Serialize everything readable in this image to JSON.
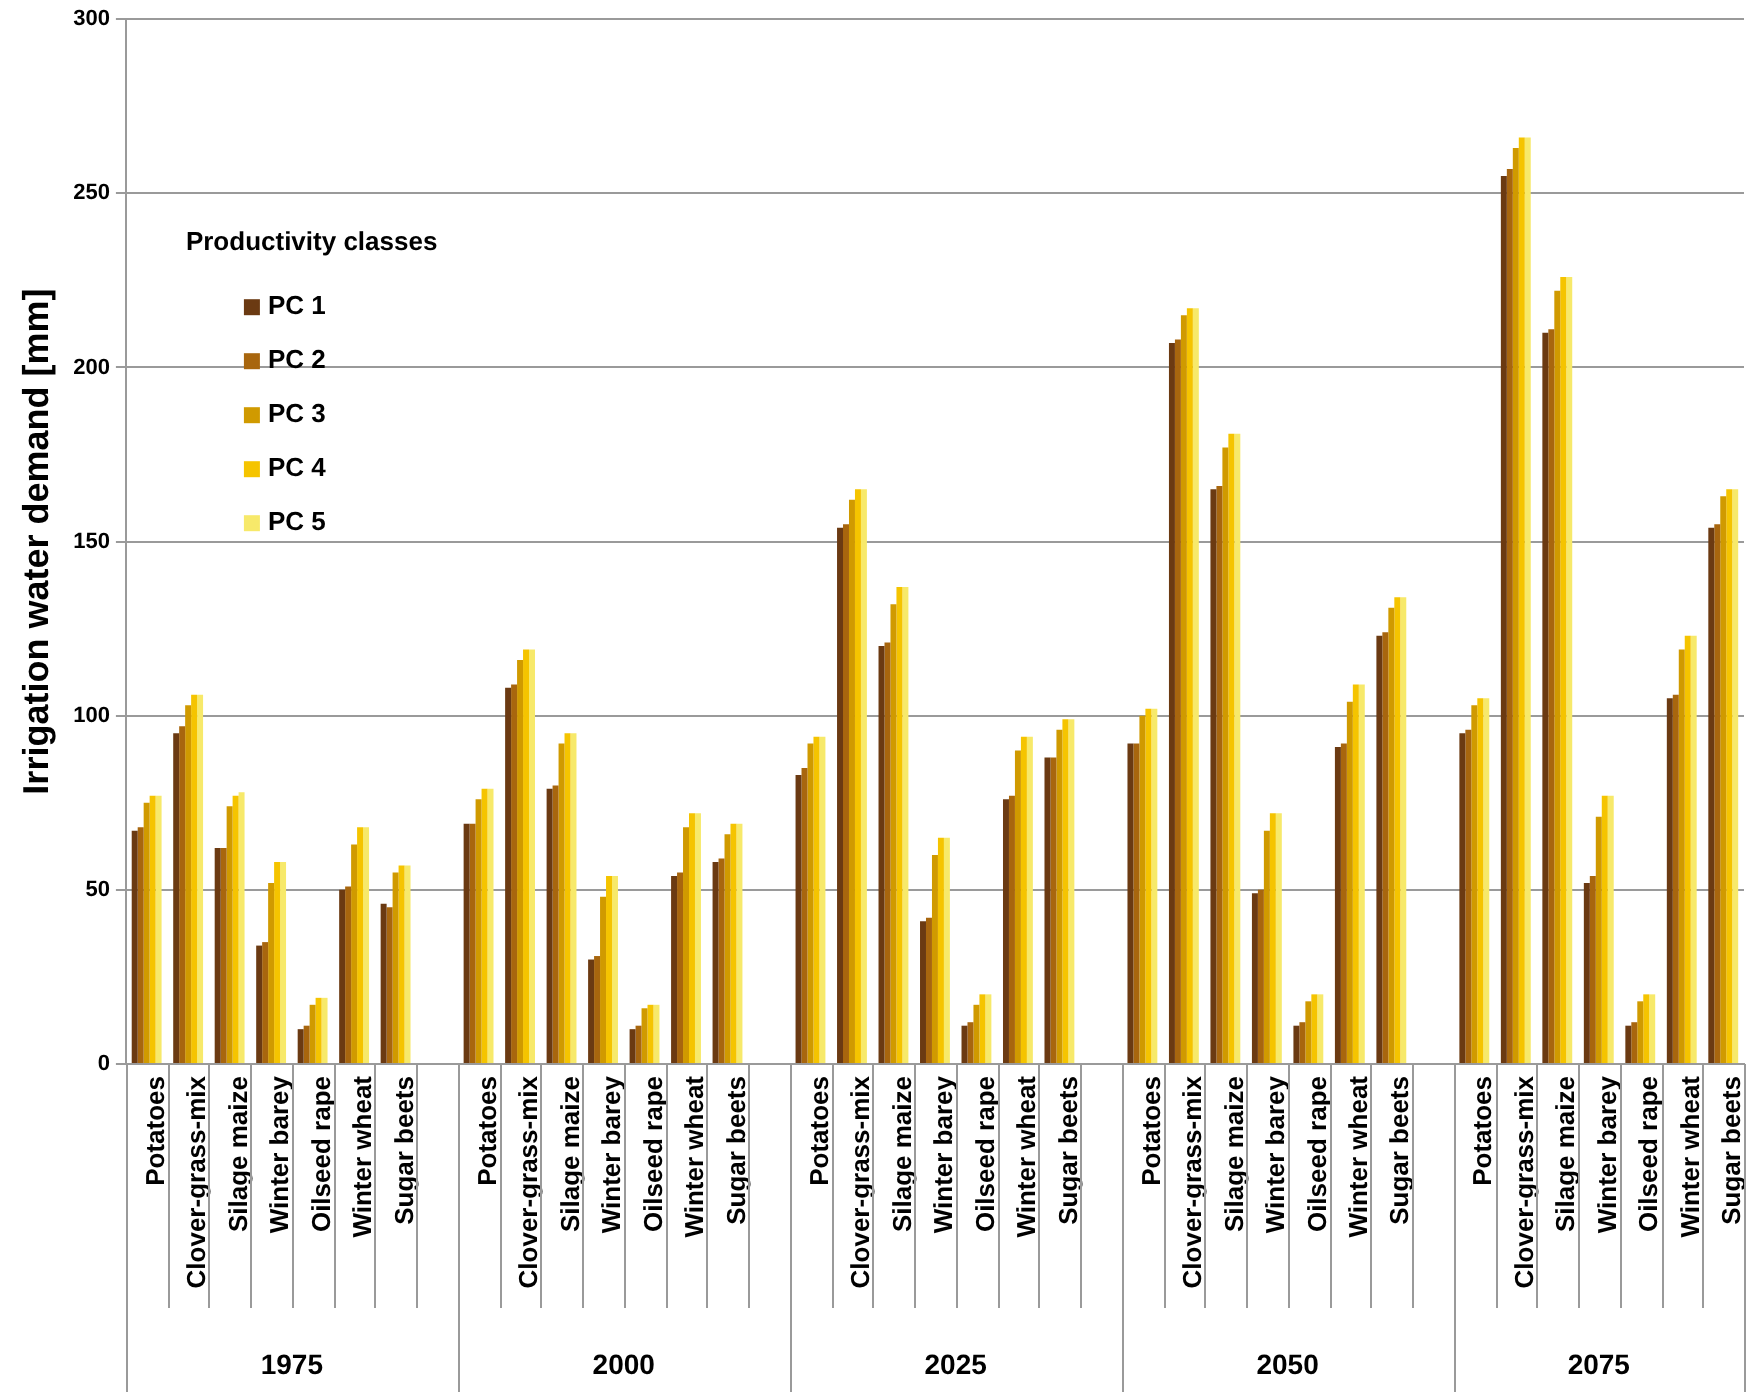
{
  "chart_data": {
    "type": "bar",
    "ylabel": "Irrigation water demand [mm]",
    "legend_title": "Productivity classes",
    "legend": "top left",
    "grid": "y",
    "categories": [
      "Potatoes",
      "Clover-grass-mix",
      "Silage maize",
      "Winter barey",
      "Oilseed rape",
      "Winter wheat",
      "Sugar beets",
      null,
      "Potatoes",
      "Clover-grass-mix",
      "Silage maize",
      "Winter barey",
      "Oilseed rape",
      "Winter wheat",
      "Sugar beets",
      null,
      "Potatoes",
      "Clover-grass-mix",
      "Silage maize",
      "Winter barey",
      "Oilseed rape",
      "Winter wheat",
      "Sugar beets",
      null,
      "Potatoes",
      "Clover-grass-mix",
      "Silage maize",
      "Winter barey",
      "Oilseed rape",
      "Winter wheat",
      "Sugar beets",
      null,
      "Potatoes",
      "Clover-grass-mix",
      "Silage maize",
      "Winter barey",
      "Oilseed rape",
      "Winter wheat",
      "Sugar beets"
    ],
    "annotations": [
      "1975",
      "2000",
      "2025",
      "2050",
      "2075"
    ],
    "ylim": [
      0,
      300
    ],
    "yticks": [
      0,
      50,
      100,
      150,
      200,
      250,
      300
    ],
    "series": [
      {
        "name": "PC 1",
        "color": "#6b3a12",
        "values": [
          67,
          95,
          62,
          34,
          10,
          50,
          46,
          null,
          69,
          108,
          79,
          30,
          10,
          54,
          58,
          null,
          83,
          154,
          120,
          41,
          11,
          76,
          88,
          null,
          92,
          207,
          165,
          49,
          11,
          91,
          123,
          null,
          95,
          255,
          210,
          52,
          11,
          105,
          154
        ]
      },
      {
        "name": "PC 2",
        "color": "#a8660e",
        "values": [
          68,
          97,
          62,
          35,
          11,
          51,
          45,
          null,
          69,
          109,
          80,
          31,
          11,
          55,
          59,
          null,
          85,
          155,
          121,
          42,
          12,
          77,
          88,
          null,
          92,
          208,
          166,
          50,
          12,
          92,
          124,
          null,
          96,
          257,
          211,
          54,
          12,
          106,
          155
        ]
      },
      {
        "name": "PC 3",
        "color": "#d09a00",
        "values": [
          75,
          103,
          74,
          52,
          17,
          63,
          55,
          null,
          76,
          116,
          92,
          48,
          16,
          68,
          66,
          null,
          92,
          162,
          132,
          60,
          17,
          90,
          96,
          null,
          100,
          215,
          177,
          67,
          18,
          104,
          131,
          null,
          103,
          263,
          222,
          71,
          18,
          119,
          163
        ]
      },
      {
        "name": "PC 4",
        "color": "#f5c400",
        "values": [
          77,
          106,
          77,
          58,
          19,
          68,
          57,
          null,
          79,
          119,
          95,
          54,
          17,
          72,
          69,
          null,
          94,
          165,
          137,
          65,
          20,
          94,
          99,
          null,
          102,
          217,
          181,
          72,
          20,
          109,
          134,
          null,
          105,
          266,
          226,
          77,
          20,
          123,
          165
        ]
      },
      {
        "name": "PC 5",
        "color": "#f7e96a",
        "values": [
          77,
          106,
          78,
          58,
          19,
          68,
          57,
          null,
          79,
          119,
          95,
          54,
          17,
          72,
          69,
          null,
          94,
          165,
          137,
          65,
          20,
          94,
          99,
          null,
          102,
          217,
          181,
          72,
          20,
          109,
          134,
          null,
          105,
          266,
          226,
          77,
          20,
          123,
          165
        ]
      }
    ]
  }
}
